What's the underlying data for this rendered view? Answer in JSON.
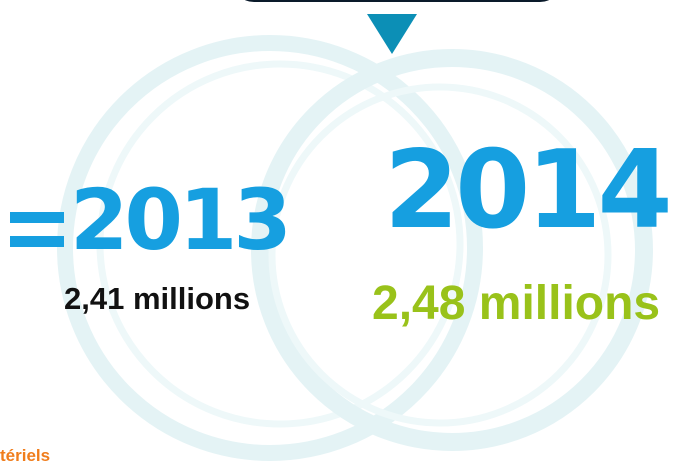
{
  "comparison": {
    "previous": {
      "year": "2013",
      "value": "2,41 millions"
    },
    "current": {
      "year": "2014",
      "value": "2,48 millions"
    },
    "trend_symbol": "equals-sign"
  },
  "footer": {
    "label": "tériels"
  },
  "icons": {
    "marker": "down-triangle-icon",
    "trend": "equals-icon"
  },
  "colors": {
    "year_blue": "#169fe0",
    "triangle_teal": "#0c8fb6",
    "ring_light": "#dff1f3",
    "value_2013": "#111111",
    "value_2014_green": "#99c21a",
    "footer_orange": "#f07d1c"
  }
}
